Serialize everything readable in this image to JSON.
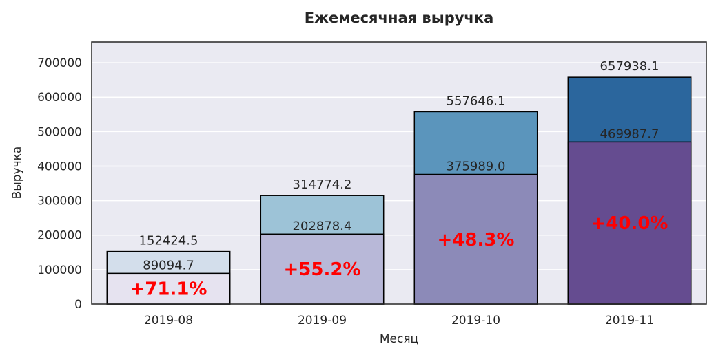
{
  "chart_data": {
    "type": "bar",
    "title": "Ежемесячная выручка",
    "xlabel": "Месяц",
    "ylabel": "Выручка",
    "categories": [
      "2019-08",
      "2019-09",
      "2019-10",
      "2019-11"
    ],
    "series": [
      {
        "values": [
          152424.5,
          314774.2,
          557646.1,
          657938.1
        ],
        "labels": [
          "152424.5",
          "314774.2",
          "557646.1",
          "657938.1"
        ],
        "colors": [
          "#d3deeb",
          "#9dc3d7",
          "#5b95bc",
          "#2b669d"
        ]
      },
      {
        "values": [
          89094.7,
          202878.4,
          375989.0,
          469987.7
        ],
        "labels": [
          "89094.7",
          "202878.4",
          "375989.0",
          "469987.7"
        ],
        "colors": [
          "#e6e3f0",
          "#b8b8d8",
          "#8c8ab8",
          "#654c90"
        ]
      }
    ],
    "annotations": [
      "+71.1%",
      "+55.2%",
      "+48.3%",
      "+40.0%"
    ],
    "yticks": [
      "0",
      "100000",
      "200000",
      "300000",
      "400000",
      "500000",
      "600000",
      "700000"
    ],
    "ylim": [
      0,
      760000
    ],
    "grid": true,
    "colors": {
      "plot_background": "#eaeaf2",
      "grid": "#ffffff",
      "edge": "#000000",
      "annotation": "#ff0000"
    }
  }
}
